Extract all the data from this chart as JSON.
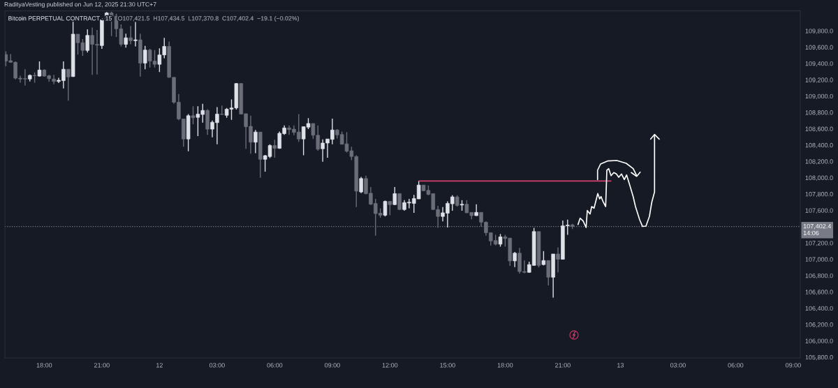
{
  "chart_data": {
    "type": "candlestick",
    "title": "Bitcoin PERPETUAL CONTRACT · 15",
    "subtitle": "O107,421.5  H107,434.5  L107,370.8  C107,402.4  −19.1 (−0.02%)",
    "annotations": [
      "RadityaVesting published on Jun 12, 2025 21:30 UTC+7"
    ],
    "x": [
      "2025-06-11T16:00",
      "2025-06-11T16:15",
      "2025-06-11T16:30",
      "2025-06-11T16:45",
      "2025-06-11T17:00",
      "2025-06-11T17:15",
      "2025-06-11T17:30",
      "2025-06-11T17:45",
      "2025-06-11T18:00",
      "2025-06-11T18:15",
      "2025-06-11T18:30",
      "2025-06-11T18:45",
      "2025-06-11T19:00",
      "2025-06-11T19:15",
      "2025-06-11T19:30",
      "2025-06-11T19:45",
      "2025-06-11T20:00",
      "2025-06-11T20:15",
      "2025-06-11T20:30",
      "2025-06-11T20:45",
      "2025-06-11T21:00",
      "2025-06-11T21:15",
      "2025-06-11T21:30",
      "2025-06-11T21:45",
      "2025-06-11T22:00",
      "2025-06-11T22:15",
      "2025-06-11T22:30",
      "2025-06-11T22:45",
      "2025-06-11T23:00",
      "2025-06-11T23:15",
      "2025-06-11T23:30",
      "2025-06-11T23:45",
      "2025-06-12T00:00",
      "2025-06-12T00:15",
      "2025-06-12T00:30",
      "2025-06-12T00:45",
      "2025-06-12T01:00",
      "2025-06-12T01:15",
      "2025-06-12T01:30",
      "2025-06-12T01:45",
      "2025-06-12T02:00",
      "2025-06-12T02:15",
      "2025-06-12T02:30",
      "2025-06-12T02:45",
      "2025-06-12T03:00",
      "2025-06-12T03:15",
      "2025-06-12T03:30",
      "2025-06-12T03:45",
      "2025-06-12T04:00",
      "2025-06-12T04:15",
      "2025-06-12T04:30",
      "2025-06-12T04:45",
      "2025-06-12T05:00",
      "2025-06-12T05:15",
      "2025-06-12T05:30",
      "2025-06-12T05:45",
      "2025-06-12T06:00",
      "2025-06-12T06:15",
      "2025-06-12T06:30",
      "2025-06-12T06:45",
      "2025-06-12T07:00",
      "2025-06-12T07:15",
      "2025-06-12T07:30",
      "2025-06-12T07:45",
      "2025-06-12T08:00",
      "2025-06-12T08:15",
      "2025-06-12T08:30",
      "2025-06-12T08:45",
      "2025-06-12T09:00",
      "2025-06-12T09:15",
      "2025-06-12T09:30",
      "2025-06-12T09:45",
      "2025-06-12T10:00",
      "2025-06-12T10:15",
      "2025-06-12T10:30",
      "2025-06-12T10:45",
      "2025-06-12T11:00",
      "2025-06-12T11:15",
      "2025-06-12T11:30",
      "2025-06-12T11:45",
      "2025-06-12T12:00",
      "2025-06-12T12:15",
      "2025-06-12T12:30",
      "2025-06-12T12:45",
      "2025-06-12T13:00",
      "2025-06-12T13:15",
      "2025-06-12T13:30",
      "2025-06-12T13:45",
      "2025-06-12T14:00",
      "2025-06-12T14:15",
      "2025-06-12T14:30",
      "2025-06-12T14:45",
      "2025-06-12T15:00",
      "2025-06-12T15:15",
      "2025-06-12T15:30",
      "2025-06-12T15:45",
      "2025-06-12T16:00",
      "2025-06-12T16:15",
      "2025-06-12T16:30",
      "2025-06-12T16:45",
      "2025-06-12T17:00",
      "2025-06-12T17:15",
      "2025-06-12T17:30",
      "2025-06-12T17:45",
      "2025-06-12T18:00",
      "2025-06-12T18:15",
      "2025-06-12T18:30",
      "2025-06-12T18:45",
      "2025-06-12T19:00",
      "2025-06-12T19:15",
      "2025-06-12T19:30",
      "2025-06-12T19:45",
      "2025-06-12T20:00",
      "2025-06-12T20:15",
      "2025-06-12T20:30",
      "2025-06-12T20:45",
      "2025-06-12T21:00",
      "2025-06-12T21:15",
      "2025-06-12T21:30"
    ],
    "ohlc": [
      [
        109510,
        109550,
        109365,
        109430
      ],
      [
        109435,
        109515,
        109410,
        109415
      ],
      [
        109415,
        109425,
        109205,
        109220
      ],
      [
        109220,
        109250,
        109165,
        109210
      ],
      [
        109215,
        109330,
        109130,
        109210
      ],
      [
        109210,
        109265,
        109180,
        109255
      ],
      [
        109255,
        109290,
        109165,
        109250
      ],
      [
        109245,
        109425,
        109240,
        109320
      ],
      [
        109320,
        109330,
        109240,
        109245
      ],
      [
        109250,
        109260,
        109175,
        109215
      ],
      [
        109210,
        109260,
        109145,
        109180
      ],
      [
        109180,
        109225,
        109160,
        109195
      ],
      [
        109190,
        109425,
        109095,
        109330
      ],
      [
        109330,
        109330,
        108945,
        109235
      ],
      [
        109240,
        109935,
        109235,
        109760
      ],
      [
        109760,
        109760,
        109510,
        109655
      ],
      [
        109655,
        109700,
        109495,
        109560
      ],
      [
        109560,
        109820,
        109535,
        109745
      ],
      [
        109745,
        109840,
        109260,
        109635
      ],
      [
        109635,
        109810,
        109265,
        109625
      ],
      [
        109620,
        109950,
        109580,
        109935
      ],
      [
        109950,
        110030,
        109945,
        110020
      ],
      [
        110020,
        110035,
        109735,
        109980
      ],
      [
        109980,
        110010,
        109725,
        109825
      ],
      [
        109825,
        109880,
        109610,
        109635
      ],
      [
        109635,
        109765,
        109595,
        109715
      ],
      [
        109715,
        109860,
        109635,
        109680
      ],
      [
        109680,
        109910,
        109610,
        109690
      ],
      [
        109690,
        109765,
        109240,
        109405
      ],
      [
        109405,
        109615,
        109330,
        109565
      ],
      [
        109565,
        109580,
        109350,
        109430
      ],
      [
        109430,
        109565,
        109350,
        109390
      ],
      [
        109390,
        109585,
        109295,
        109505
      ],
      [
        109505,
        109715,
        109465,
        109610
      ],
      [
        109610,
        109670,
        109225,
        109230
      ],
      [
        109230,
        109230,
        108905,
        108925
      ],
      [
        108925,
        109025,
        108705,
        108720
      ],
      [
        108720,
        108720,
        108380,
        108475
      ],
      [
        108475,
        108780,
        108325,
        108760
      ],
      [
        108760,
        108875,
        108655,
        108735
      ],
      [
        108740,
        108875,
        108510,
        108780
      ],
      [
        108775,
        108905,
        108675,
        108825
      ],
      [
        108825,
        108840,
        108525,
        108595
      ],
      [
        108595,
        108700,
        108495,
        108680
      ],
      [
        108675,
        108865,
        108410,
        108780
      ],
      [
        108780,
        108885,
        108770,
        108775
      ],
      [
        108765,
        108855,
        108735,
        108840
      ],
      [
        108840,
        108960,
        108710,
        108855
      ],
      [
        108855,
        109160,
        108835,
        109155
      ],
      [
        109155,
        109160,
        108775,
        108780
      ],
      [
        108785,
        108785,
        108355,
        108625
      ],
      [
        108630,
        108760,
        108295,
        108435
      ],
      [
        108435,
        108585,
        108300,
        108560
      ],
      [
        108560,
        108560,
        108000,
        108225
      ],
      [
        108225,
        108280,
        108075,
        108270
      ],
      [
        108260,
        108410,
        108240,
        108395
      ],
      [
        108395,
        108465,
        108245,
        108360
      ],
      [
        108360,
        108565,
        108355,
        108545
      ],
      [
        108540,
        108640,
        108525,
        108610
      ],
      [
        108610,
        108640,
        108525,
        108590
      ],
      [
        108595,
        108640,
        108520,
        108555
      ],
      [
        108560,
        108780,
        108440,
        108475
      ],
      [
        108475,
        108625,
        108275,
        108625
      ],
      [
        108620,
        108730,
        108595,
        108665
      ],
      [
        108665,
        108665,
        108475,
        108520
      ],
      [
        108520,
        108640,
        108330,
        108350
      ],
      [
        108355,
        108470,
        108195,
        108425
      ],
      [
        108425,
        108475,
        108245,
        108475
      ],
      [
        108470,
        108725,
        108410,
        108585
      ],
      [
        108585,
        108595,
        108480,
        108525
      ],
      [
        108530,
        108565,
        108410,
        108410
      ],
      [
        108415,
        108560,
        108310,
        108325
      ],
      [
        108330,
        108380,
        108215,
        108260
      ],
      [
        108260,
        108275,
        107640,
        107835
      ],
      [
        107825,
        108010,
        107810,
        107990
      ],
      [
        107990,
        108025,
        107795,
        107805
      ],
      [
        107810,
        107885,
        107665,
        107675
      ],
      [
        107685,
        107740,
        107290,
        107560
      ],
      [
        107565,
        107625,
        107510,
        107540
      ],
      [
        107540,
        107720,
        107525,
        107710
      ],
      [
        107710,
        107710,
        107540,
        107670
      ],
      [
        107670,
        107885,
        107665,
        107805
      ],
      [
        107805,
        107805,
        107605,
        107610
      ],
      [
        107610,
        107725,
        107595,
        107695
      ],
      [
        107690,
        107740,
        107625,
        107700
      ],
      [
        107685,
        107790,
        107570,
        107745
      ],
      [
        107740,
        107955,
        107740,
        107910
      ],
      [
        107910,
        107910,
        107835,
        107840
      ],
      [
        107845,
        107905,
        107785,
        107795
      ],
      [
        107805,
        107805,
        107605,
        107610
      ],
      [
        107610,
        107655,
        107385,
        107525
      ],
      [
        107525,
        107640,
        107465,
        107570
      ],
      [
        107565,
        107710,
        107390,
        107685
      ],
      [
        107680,
        107785,
        107595,
        107765
      ],
      [
        107765,
        107785,
        107645,
        107660
      ],
      [
        107665,
        107725,
        107595,
        107675
      ],
      [
        107675,
        107725,
        107565,
        107570
      ],
      [
        107575,
        107575,
        107490,
        107535
      ],
      [
        107535,
        107675,
        107530,
        107575
      ],
      [
        107575,
        107575,
        107400,
        107455
      ],
      [
        107455,
        107465,
        107290,
        107325
      ],
      [
        107325,
        107330,
        107170,
        107225
      ],
      [
        107230,
        107300,
        107170,
        107185
      ],
      [
        107185,
        107310,
        107155,
        107275
      ],
      [
        107275,
        107300,
        107155,
        107255
      ],
      [
        107260,
        107260,
        106920,
        106980
      ],
      [
        106980,
        107090,
        106905,
        107075
      ],
      [
        107075,
        107140,
        106825,
        106850
      ],
      [
        106850,
        106985,
        106830,
        106840
      ],
      [
        106840,
        106970,
        106835,
        106935
      ],
      [
        106925,
        107385,
        106925,
        107340
      ],
      [
        107340,
        107340,
        106900,
        106925
      ],
      [
        106935,
        107100,
        106925,
        106985
      ],
      [
        106985,
        106985,
        106680,
        106780
      ],
      [
        106780,
        107065,
        106530,
        107065
      ],
      [
        107065,
        107145,
        106840,
        107000
      ],
      [
        107000,
        107475,
        107000,
        107410
      ],
      [
        107410,
        107485,
        107300,
        107420
      ],
      [
        107421.5,
        107434.5,
        107370.8,
        107402.4
      ]
    ],
    "colors": [
      "#6b6e79",
      "#6b6e79",
      "#6b6e79",
      "#6b6e79",
      "#6b6e79",
      "#dfe1e8",
      "#6b6e79",
      "#dfe1e8",
      "#6b6e79",
      "#6b6e79",
      "#6b6e79",
      "#dfe1e8",
      "#dfe1e8",
      "#6b6e79",
      "#dfe1e8",
      "#6b6e79",
      "#6b6e79",
      "#dfe1e8",
      "#6b6e79",
      "#6b6e79",
      "#dfe1e8",
      "#dfe1e8",
      "#6b6e79",
      "#6b6e79",
      "#6b6e79",
      "#dfe1e8",
      "#6b6e79",
      "#dfe1e8",
      "#6b6e79",
      "#dfe1e8",
      "#6b6e79",
      "#6b6e79",
      "#dfe1e8",
      "#dfe1e8",
      "#6b6e79",
      "#6b6e79",
      "#6b6e79",
      "#6b6e79",
      "#dfe1e8",
      "#6b6e79",
      "#dfe1e8",
      "#dfe1e8",
      "#6b6e79",
      "#dfe1e8",
      "#dfe1e8",
      "#6b6e79",
      "#dfe1e8",
      "#dfe1e8",
      "#dfe1e8",
      "#6b6e79",
      "#6b6e79",
      "#6b6e79",
      "#dfe1e8",
      "#6b6e79",
      "#dfe1e8",
      "#dfe1e8",
      "#6b6e79",
      "#dfe1e8",
      "#dfe1e8",
      "#6b6e79",
      "#6b6e79",
      "#6b6e79",
      "#dfe1e8",
      "#dfe1e8",
      "#6b6e79",
      "#6b6e79",
      "#dfe1e8",
      "#dfe1e8",
      "#dfe1e8",
      "#6b6e79",
      "#6b6e79",
      "#6b6e79",
      "#6b6e79",
      "#6b6e79",
      "#dfe1e8",
      "#6b6e79",
      "#6b6e79",
      "#6b6e79",
      "#6b6e79",
      "#dfe1e8",
      "#6b6e79",
      "#dfe1e8",
      "#6b6e79",
      "#dfe1e8",
      "#dfe1e8",
      "#dfe1e8",
      "#dfe1e8",
      "#6b6e79",
      "#6b6e79",
      "#6b6e79",
      "#6b6e79",
      "#dfe1e8",
      "#dfe1e8",
      "#dfe1e8",
      "#6b6e79",
      "#dfe1e8",
      "#6b6e79",
      "#6b6e79",
      "#dfe1e8",
      "#6b6e79",
      "#6b6e79",
      "#6b6e79",
      "#6b6e79",
      "#dfe1e8",
      "#6b6e79",
      "#6b6e79",
      "#dfe1e8",
      "#6b6e79",
      "#6b6e79",
      "#dfe1e8",
      "#dfe1e8",
      "#6b6e79",
      "#dfe1e8",
      "#6b6e79",
      "#dfe1e8",
      "#6b6e79",
      "#dfe1e8",
      "#dfe1e8",
      "#6b6e79"
    ],
    "series": [
      {
        "type": "line",
        "x": [
          "2025-06-12T13:30",
          "2025-06-12T23:30"
        ],
        "values": [
          107960,
          107960
        ],
        "color": "#d4416f"
      }
    ],
    "ref_lines": [
      {
        "axis": "y",
        "value": 107402.4,
        "label": "107,402.4\n14:06",
        "color": "#787b86",
        "line_style": "dotted"
      }
    ],
    "xlim": [
      "2025-06-11T15:57",
      "2025-06-13T09:22"
    ],
    "xticks": [
      {
        "value": "2025-06-11T18:00",
        "label": "18:00"
      },
      {
        "value": "2025-06-11T21:00",
        "label": "21:00"
      },
      {
        "value": "2025-06-12T00:00",
        "label": "12"
      },
      {
        "value": "2025-06-12T03:00",
        "label": "03:00"
      },
      {
        "value": "2025-06-12T06:00",
        "label": "06:00"
      },
      {
        "value": "2025-06-12T09:00",
        "label": "09:00"
      },
      {
        "value": "2025-06-12T12:00",
        "label": "12:00"
      },
      {
        "value": "2025-06-12T15:00",
        "label": "15:00"
      },
      {
        "value": "2025-06-12T18:00",
        "label": "18:00"
      },
      {
        "value": "2025-06-12T21:00",
        "label": "21:00"
      },
      {
        "value": "2025-06-13T00:00",
        "label": "13"
      },
      {
        "value": "2025-06-13T03:00",
        "label": "03:00"
      },
      {
        "value": "2025-06-13T06:00",
        "label": "06:00"
      },
      {
        "value": "2025-06-13T09:00",
        "label": "09:00"
      }
    ],
    "ylim": [
      105790,
      110045
    ],
    "yticks": [
      {
        "value": 109800,
        "label": "109,800.0"
      },
      {
        "value": 109600,
        "label": "109,600.0"
      },
      {
        "value": 109400,
        "label": "109,400.0"
      },
      {
        "value": 109200,
        "label": "109,200.0"
      },
      {
        "value": 109000,
        "label": "109,000.0"
      },
      {
        "value": 108800,
        "label": "108,800.0"
      },
      {
        "value": 108600,
        "label": "108,600.0"
      },
      {
        "value": 108400,
        "label": "108,400.0"
      },
      {
        "value": 108200,
        "label": "108,200.0"
      },
      {
        "value": 108000,
        "label": "108,000.0"
      },
      {
        "value": 107800,
        "label": "107,800.0"
      },
      {
        "value": 107600,
        "label": "107,600.0"
      },
      {
        "value": 107200,
        "label": "107,200.0"
      },
      {
        "value": 107000,
        "label": "107,000.0"
      },
      {
        "value": 106800,
        "label": "106,800.0"
      },
      {
        "value": 106600,
        "label": "106,600.0"
      },
      {
        "value": 106400,
        "label": "106,400.0"
      },
      {
        "value": 106200,
        "label": "106,200.0"
      },
      {
        "value": 106000,
        "label": "106,000.0"
      },
      {
        "value": 105800,
        "label": "105,800.0"
      }
    ]
  }
}
